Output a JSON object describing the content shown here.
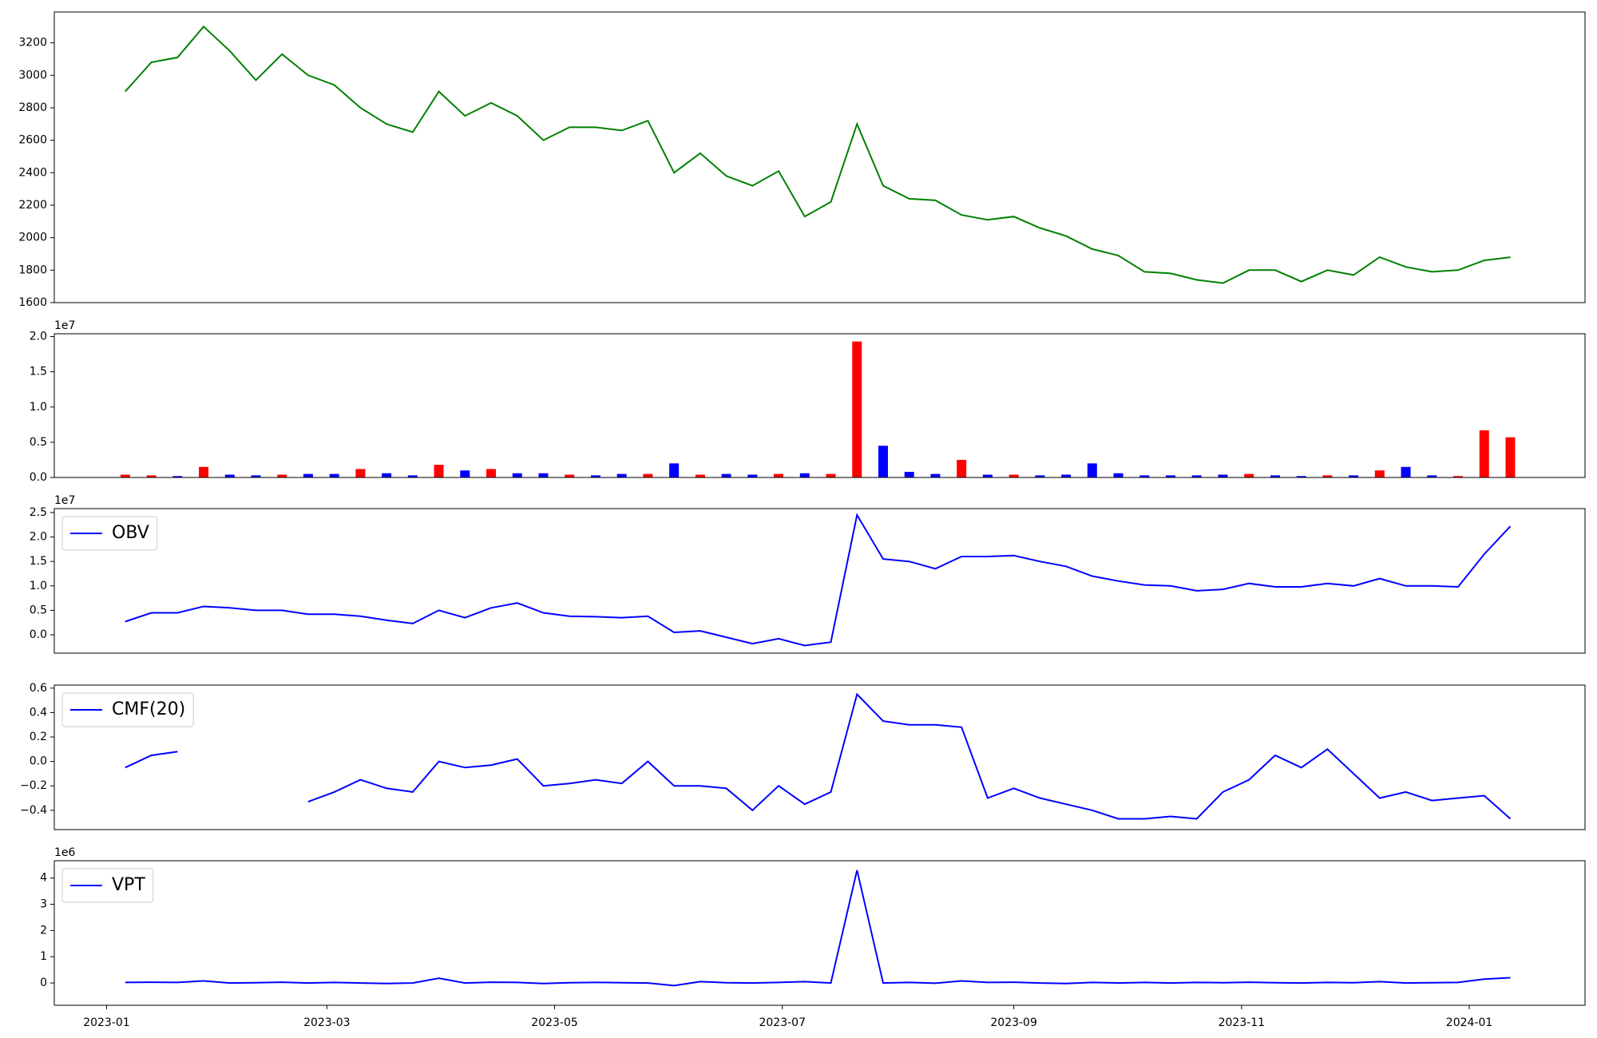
{
  "chart_data": [
    {
      "type": "line",
      "color": "#008000",
      "x": [
        "2023-01-06",
        "2023-01-13",
        "2023-01-20",
        "2023-01-27",
        "2023-02-03",
        "2023-02-10",
        "2023-02-17",
        "2023-02-24",
        "2023-03-03",
        "2023-03-10",
        "2023-03-17",
        "2023-03-24",
        "2023-03-31",
        "2023-04-07",
        "2023-04-14",
        "2023-04-21",
        "2023-04-28",
        "2023-05-05",
        "2023-05-12",
        "2023-05-19",
        "2023-05-26",
        "2023-06-02",
        "2023-06-09",
        "2023-06-16",
        "2023-06-23",
        "2023-06-30",
        "2023-07-07",
        "2023-07-14",
        "2023-07-21",
        "2023-07-28",
        "2023-08-04",
        "2023-08-11",
        "2023-08-18",
        "2023-08-25",
        "2023-09-01",
        "2023-09-08",
        "2023-09-15",
        "2023-09-22",
        "2023-09-29",
        "2023-10-06",
        "2023-10-13",
        "2023-10-20",
        "2023-10-27",
        "2023-11-03",
        "2023-11-10",
        "2023-11-17",
        "2023-11-24",
        "2023-12-01",
        "2023-12-08",
        "2023-12-15",
        "2023-12-22",
        "2023-12-29",
        "2024-01-05",
        "2024-01-12"
      ],
      "values": [
        2900,
        3080,
        3110,
        3300,
        3150,
        2970,
        3130,
        3000,
        2940,
        2800,
        2700,
        2650,
        2900,
        2750,
        2830,
        2750,
        2600,
        2680,
        2680,
        2660,
        2720,
        2400,
        2520,
        2380,
        2320,
        2410,
        2130,
        2220,
        2700,
        2320,
        2240,
        2230,
        2140,
        2110,
        2130,
        2060,
        2010,
        1930,
        1890,
        1790,
        1780,
        1740,
        1720,
        1800,
        1800,
        1730,
        1800,
        1770,
        1880,
        1820,
        1790,
        1800,
        1860,
        1880
      ],
      "xlim": [
        "2022-12-18",
        "2024-02-01"
      ],
      "ylim": [
        1600,
        3390
      ],
      "yticks": [
        1600,
        1800,
        2000,
        2200,
        2400,
        2600,
        2800,
        3000,
        3200
      ]
    },
    {
      "type": "bar",
      "y_offset_label": "1e7",
      "x": [
        "2023-01-06",
        "2023-01-13",
        "2023-01-20",
        "2023-01-27",
        "2023-02-03",
        "2023-02-10",
        "2023-02-17",
        "2023-02-24",
        "2023-03-03",
        "2023-03-10",
        "2023-03-17",
        "2023-03-24",
        "2023-03-31",
        "2023-04-07",
        "2023-04-14",
        "2023-04-21",
        "2023-04-28",
        "2023-05-05",
        "2023-05-12",
        "2023-05-19",
        "2023-05-26",
        "2023-06-02",
        "2023-06-09",
        "2023-06-16",
        "2023-06-23",
        "2023-06-30",
        "2023-07-07",
        "2023-07-14",
        "2023-07-21",
        "2023-07-28",
        "2023-08-04",
        "2023-08-11",
        "2023-08-18",
        "2023-08-25",
        "2023-09-01",
        "2023-09-08",
        "2023-09-15",
        "2023-09-22",
        "2023-09-29",
        "2023-10-06",
        "2023-10-13",
        "2023-10-20",
        "2023-10-27",
        "2023-11-03",
        "2023-11-10",
        "2023-11-17",
        "2023-11-24",
        "2023-12-01",
        "2023-12-08",
        "2023-12-15",
        "2023-12-22",
        "2023-12-29",
        "2024-01-05",
        "2024-01-12"
      ],
      "values": [
        0.04,
        0.03,
        0.02,
        0.15,
        0.04,
        0.03,
        0.04,
        0.05,
        0.05,
        0.12,
        0.06,
        0.03,
        0.18,
        0.1,
        0.12,
        0.06,
        0.06,
        0.04,
        0.03,
        0.05,
        0.05,
        0.2,
        0.04,
        0.05,
        0.04,
        0.05,
        0.06,
        0.05,
        1.93,
        0.45,
        0.08,
        0.05,
        0.25,
        0.04,
        0.04,
        0.03,
        0.04,
        0.2,
        0.06,
        0.03,
        0.03,
        0.03,
        0.04,
        0.05,
        0.03,
        0.02,
        0.03,
        0.03,
        0.1,
        0.15,
        0.03,
        0.02,
        0.67,
        0.57
      ],
      "colors": [
        "#ff0000",
        "#ff0000",
        "#0000ff",
        "#ff0000",
        "#0000ff",
        "#0000ff",
        "#ff0000",
        "#0000ff",
        "#0000ff",
        "#ff0000",
        "#0000ff",
        "#0000ff",
        "#ff0000",
        "#0000ff",
        "#ff0000",
        "#0000ff",
        "#0000ff",
        "#ff0000",
        "#0000ff",
        "#0000ff",
        "#ff0000",
        "#0000ff",
        "#ff0000",
        "#0000ff",
        "#0000ff",
        "#ff0000",
        "#0000ff",
        "#ff0000",
        "#ff0000",
        "#0000ff",
        "#0000ff",
        "#0000ff",
        "#ff0000",
        "#0000ff",
        "#ff0000",
        "#0000ff",
        "#0000ff",
        "#0000ff",
        "#0000ff",
        "#0000ff",
        "#0000ff",
        "#0000ff",
        "#0000ff",
        "#ff0000",
        "#0000ff",
        "#0000ff",
        "#ff0000",
        "#0000ff",
        "#ff0000",
        "#0000ff",
        "#0000ff",
        "#ff0000",
        "#ff0000",
        "#ff0000"
      ],
      "xlim": [
        "2022-12-18",
        "2024-02-01"
      ],
      "ylim": [
        0,
        2.04
      ],
      "yticks": [
        {
          "value": 0,
          "label": "0.0"
        },
        {
          "value": 0.5,
          "label": "0.5"
        },
        {
          "value": 1,
          "label": "1.0"
        },
        {
          "value": 1.5,
          "label": "1.5"
        },
        {
          "value": 2,
          "label": "2.0"
        }
      ]
    },
    {
      "type": "line",
      "y_offset_label": "1e7",
      "legend": "upper left",
      "x": [
        "2023-01-06",
        "2023-01-13",
        "2023-01-20",
        "2023-01-27",
        "2023-02-03",
        "2023-02-10",
        "2023-02-17",
        "2023-02-24",
        "2023-03-03",
        "2023-03-10",
        "2023-03-17",
        "2023-03-24",
        "2023-03-31",
        "2023-04-07",
        "2023-04-14",
        "2023-04-21",
        "2023-04-28",
        "2023-05-05",
        "2023-05-12",
        "2023-05-19",
        "2023-05-26",
        "2023-06-02",
        "2023-06-09",
        "2023-06-16",
        "2023-06-23",
        "2023-06-30",
        "2023-07-07",
        "2023-07-14",
        "2023-07-21",
        "2023-07-28",
        "2023-08-04",
        "2023-08-11",
        "2023-08-18",
        "2023-08-25",
        "2023-09-01",
        "2023-09-08",
        "2023-09-15",
        "2023-09-22",
        "2023-09-29",
        "2023-10-06",
        "2023-10-13",
        "2023-10-20",
        "2023-10-27",
        "2023-11-03",
        "2023-11-10",
        "2023-11-17",
        "2023-11-24",
        "2023-12-01",
        "2023-12-08",
        "2023-12-15",
        "2023-12-22",
        "2023-12-29",
        "2024-01-05",
        "2024-01-12"
      ],
      "series": [
        {
          "name": "OBV",
          "color": "#0000ff",
          "values": [
            0.27,
            0.45,
            0.45,
            0.58,
            0.55,
            0.5,
            0.5,
            0.42,
            0.42,
            0.38,
            0.3,
            0.23,
            0.5,
            0.35,
            0.55,
            0.65,
            0.45,
            0.38,
            0.37,
            0.35,
            0.38,
            0.05,
            0.08,
            -0.05,
            -0.18,
            -0.08,
            -0.22,
            -0.15,
            2.45,
            1.55,
            1.5,
            1.35,
            1.6,
            1.6,
            1.62,
            1.5,
            1.4,
            1.2,
            1.1,
            1.02,
            1.0,
            0.9,
            0.93,
            1.05,
            0.98,
            0.98,
            1.05,
            1.0,
            1.15,
            1.0,
            1.0,
            0.98,
            1.65,
            2.22
          ]
        }
      ],
      "xlim": [
        "2022-12-18",
        "2024-02-01"
      ],
      "ylim": [
        -0.375,
        2.58
      ],
      "yticks": [
        {
          "value": 0,
          "label": "0.0"
        },
        {
          "value": 0.5,
          "label": "0.5"
        },
        {
          "value": 1,
          "label": "1.0"
        },
        {
          "value": 1.5,
          "label": "1.5"
        },
        {
          "value": 2,
          "label": "2.0"
        },
        {
          "value": 2.5,
          "label": "2.5"
        }
      ]
    },
    {
      "type": "line",
      "legend": "upper left",
      "x": [
        "2023-01-06",
        "2023-01-13",
        "2023-01-20",
        "2023-01-27",
        "2023-02-03",
        "2023-02-10",
        "2023-02-17",
        "2023-02-24",
        "2023-03-03",
        "2023-03-10",
        "2023-03-17",
        "2023-03-24",
        "2023-03-31",
        "2023-04-07",
        "2023-04-14",
        "2023-04-21",
        "2023-04-28",
        "2023-05-05",
        "2023-05-12",
        "2023-05-19",
        "2023-05-26",
        "2023-06-02",
        "2023-06-09",
        "2023-06-16",
        "2023-06-23",
        "2023-06-30",
        "2023-07-07",
        "2023-07-14",
        "2023-07-21",
        "2023-07-28",
        "2023-08-04",
        "2023-08-11",
        "2023-08-18",
        "2023-08-25",
        "2023-09-01",
        "2023-09-08",
        "2023-09-15",
        "2023-09-22",
        "2023-09-29",
        "2023-10-06",
        "2023-10-13",
        "2023-10-20",
        "2023-10-27",
        "2023-11-03",
        "2023-11-10",
        "2023-11-17",
        "2023-11-24",
        "2023-12-01",
        "2023-12-08",
        "2023-12-15",
        "2023-12-22",
        "2023-12-29",
        "2024-01-05",
        "2024-01-12"
      ],
      "series": [
        {
          "name": "CMF(20)",
          "color": "#0000ff",
          "values": [
            -0.05,
            0.05,
            0.08,
            null,
            null,
            null,
            null,
            -0.33,
            -0.25,
            -0.15,
            -0.22,
            -0.25,
            0.0,
            -0.05,
            -0.03,
            0.02,
            -0.2,
            -0.18,
            -0.15,
            -0.18,
            0.0,
            -0.2,
            -0.2,
            -0.22,
            -0.4,
            -0.2,
            -0.35,
            -0.25,
            0.55,
            0.33,
            0.3,
            0.3,
            0.28,
            -0.3,
            -0.22,
            -0.3,
            -0.35,
            -0.4,
            -0.47,
            -0.47,
            -0.45,
            -0.47,
            -0.25,
            -0.15,
            0.05,
            -0.05,
            0.1,
            -0.1,
            -0.3,
            -0.25,
            -0.32,
            -0.3,
            -0.28,
            -0.47
          ]
        }
      ],
      "xlim": [
        "2022-12-18",
        "2024-02-01"
      ],
      "ylim": [
        -0.558,
        0.625
      ],
      "yticks": [
        {
          "value": -0.4,
          "label": "−0.4"
        },
        {
          "value": -0.2,
          "label": "−0.2"
        },
        {
          "value": 0,
          "label": "0.0"
        },
        {
          "value": 0.2,
          "label": "0.2"
        },
        {
          "value": 0.4,
          "label": "0.4"
        },
        {
          "value": 0.6,
          "label": "0.6"
        }
      ]
    },
    {
      "type": "line",
      "y_offset_label": "1e6",
      "legend": "upper left",
      "x": [
        "2023-01-06",
        "2023-01-13",
        "2023-01-20",
        "2023-01-27",
        "2023-02-03",
        "2023-02-10",
        "2023-02-17",
        "2023-02-24",
        "2023-03-03",
        "2023-03-10",
        "2023-03-17",
        "2023-03-24",
        "2023-03-31",
        "2023-04-07",
        "2023-04-14",
        "2023-04-21",
        "2023-04-28",
        "2023-05-05",
        "2023-05-12",
        "2023-05-19",
        "2023-05-26",
        "2023-06-02",
        "2023-06-09",
        "2023-06-16",
        "2023-06-23",
        "2023-06-30",
        "2023-07-07",
        "2023-07-14",
        "2023-07-21",
        "2023-07-28",
        "2023-08-04",
        "2023-08-11",
        "2023-08-18",
        "2023-08-25",
        "2023-09-01",
        "2023-09-08",
        "2023-09-15",
        "2023-09-22",
        "2023-09-29",
        "2023-10-06",
        "2023-10-13",
        "2023-10-20",
        "2023-10-27",
        "2023-11-03",
        "2023-11-10",
        "2023-11-17",
        "2023-11-24",
        "2023-12-01",
        "2023-12-08",
        "2023-12-15",
        "2023-12-22",
        "2023-12-29",
        "2024-01-05",
        "2024-01-12"
      ],
      "series": [
        {
          "name": "VPT",
          "color": "#0000ff",
          "values": [
            0.02,
            0.03,
            0.02,
            0.08,
            0.0,
            0.01,
            0.03,
            0.0,
            0.02,
            0.0,
            -0.02,
            0.0,
            0.18,
            0.0,
            0.03,
            0.02,
            -0.02,
            0.01,
            0.02,
            0.01,
            0.0,
            -0.1,
            0.05,
            0.01,
            0.0,
            0.02,
            0.05,
            0.0,
            4.3,
            0.0,
            0.02,
            -0.01,
            0.08,
            0.02,
            0.03,
            0.0,
            -0.02,
            0.02,
            0.0,
            0.02,
            0.0,
            0.02,
            0.01,
            0.03,
            0.01,
            0.0,
            0.02,
            0.01,
            0.05,
            0.0,
            0.01,
            0.02,
            0.15,
            0.2
          ]
        }
      ],
      "xlim": [
        "2022-12-18",
        "2024-02-01"
      ],
      "ylim": [
        -0.85,
        4.66
      ],
      "yticks": [
        0,
        1,
        2,
        3,
        4
      ],
      "xticks": [
        {
          "value": "2023-01-01",
          "label": "2023-01"
        },
        {
          "value": "2023-03-01",
          "label": "2023-03"
        },
        {
          "value": "2023-05-01",
          "label": "2023-05"
        },
        {
          "value": "2023-07-01",
          "label": "2023-07"
        },
        {
          "value": "2023-09-01",
          "label": "2023-09"
        },
        {
          "value": "2023-11-01",
          "label": "2023-11"
        },
        {
          "value": "2024-01-01",
          "label": "2024-01"
        }
      ]
    }
  ]
}
